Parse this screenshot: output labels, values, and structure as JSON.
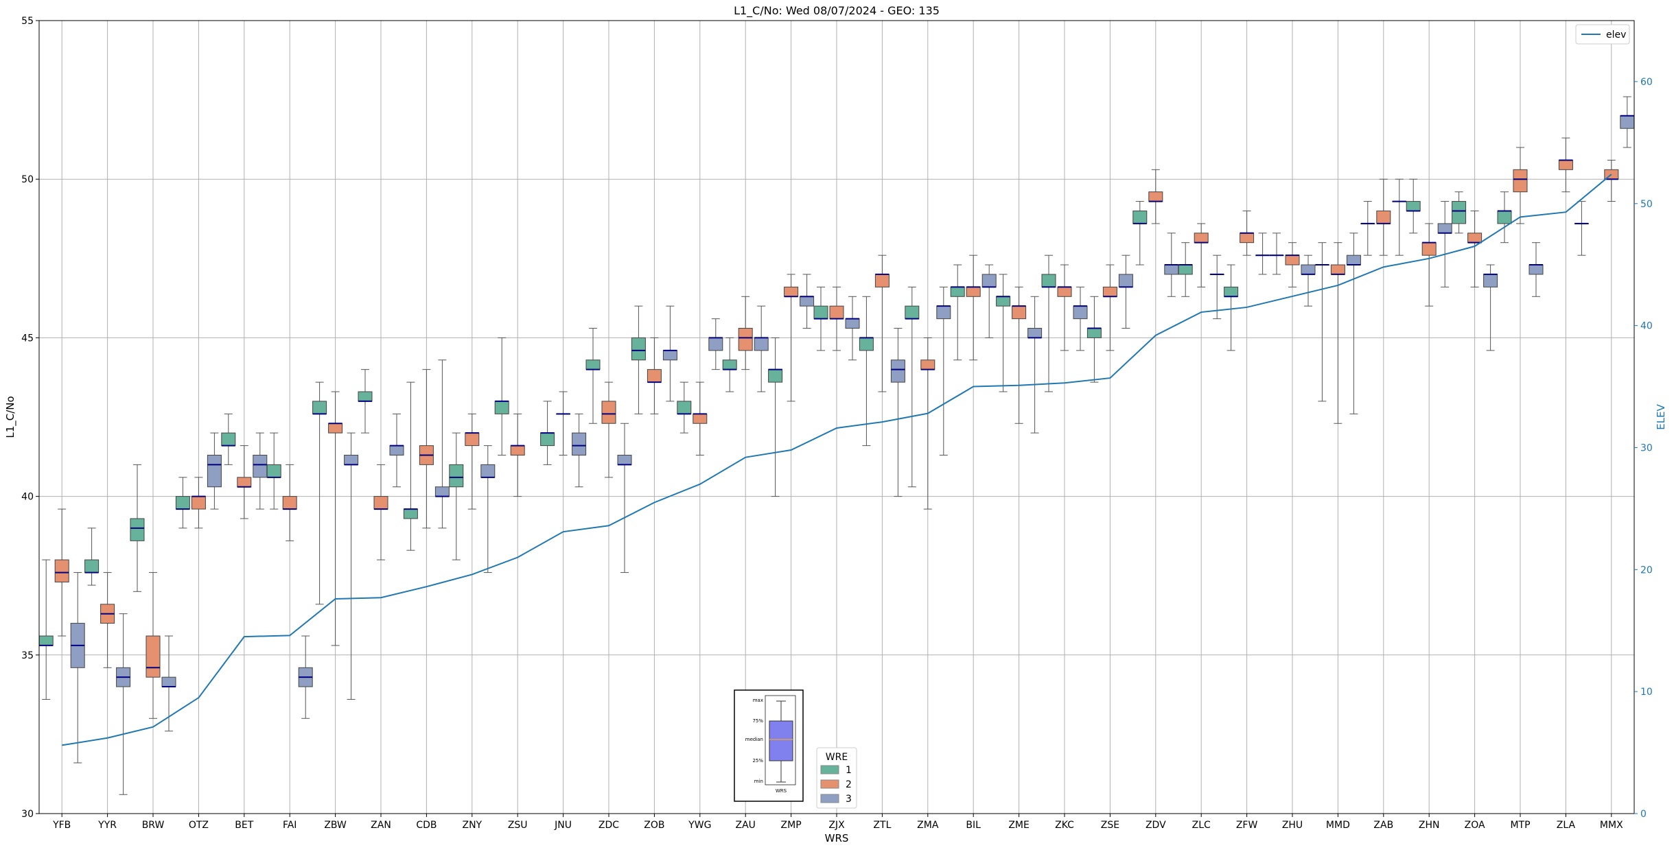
{
  "chart_data": {
    "type": "box",
    "title": "L1_C/No: Wed 08/07/2024 - GEO: 135",
    "xlabel": "WRS",
    "ylabel": "L1_C/No",
    "y2label": "ELEV",
    "ylim": [
      30,
      55
    ],
    "y2lim": [
      0,
      65
    ],
    "yticks": [
      30,
      35,
      40,
      45,
      50,
      55
    ],
    "y2ticks": [
      0,
      10,
      20,
      30,
      40,
      50,
      60
    ],
    "grid": true,
    "legend_line": {
      "label": "elev",
      "position": "top-right",
      "color": "#1f77b4"
    },
    "legend_wre": {
      "title": "WRE",
      "position": "bottom-center",
      "entries": [
        {
          "label": "1",
          "color": "#66b29a"
        },
        {
          "label": "2",
          "color": "#e5906e"
        },
        {
          "label": "3",
          "color": "#8f9ec3"
        }
      ]
    },
    "box_key": {
      "labels": [
        "max",
        "75%",
        "median",
        "25%",
        "min"
      ],
      "xlabel": "WRS",
      "fill": "#8080ee"
    },
    "categories": [
      "YFB",
      "YYR",
      "BRW",
      "OTZ",
      "BET",
      "FAI",
      "ZBW",
      "ZAN",
      "CDB",
      "ZNY",
      "ZSU",
      "JNU",
      "ZDC",
      "ZOB",
      "YWG",
      "ZAU",
      "ZMP",
      "ZJX",
      "ZTL",
      "ZMA",
      "BIL",
      "ZME",
      "ZKC",
      "ZSE",
      "ZDV",
      "ZLC",
      "ZFW",
      "ZHU",
      "MMD",
      "ZAB",
      "ZHN",
      "ZOA",
      "MTP",
      "ZLA",
      "MMX"
    ],
    "elev": [
      5.6,
      6.2,
      7.1,
      9.5,
      14.5,
      14.6,
      17.6,
      17.7,
      18.6,
      19.6,
      21.0,
      23.1,
      23.6,
      25.5,
      27.0,
      29.2,
      29.8,
      31.6,
      32.1,
      32.8,
      35.0,
      35.1,
      35.3,
      35.7,
      39.2,
      41.1,
      41.5,
      42.4,
      43.3,
      44.8,
      45.5,
      46.5,
      48.9,
      49.3,
      52.4
    ],
    "series": [
      {
        "name": "1",
        "boxes": [
          {
            "min": 33.6,
            "q1": 35.3,
            "median": 35.3,
            "q3": 35.6,
            "max": 38.0
          },
          {
            "min": 37.2,
            "q1": 37.6,
            "median": 37.6,
            "q3": 38.0,
            "max": 39.0
          },
          {
            "min": 37.0,
            "q1": 38.6,
            "median": 39.0,
            "q3": 39.3,
            "max": 41.0
          },
          {
            "min": 39.0,
            "q1": 39.6,
            "median": 39.6,
            "q3": 40.0,
            "max": 40.6
          },
          {
            "min": 41.0,
            "q1": 41.6,
            "median": 41.6,
            "q3": 42.0,
            "max": 42.6
          },
          {
            "min": 39.6,
            "q1": 40.6,
            "median": 40.6,
            "q3": 41.0,
            "max": 42.0
          },
          {
            "min": 36.6,
            "q1": 42.6,
            "median": 42.6,
            "q3": 43.0,
            "max": 43.6
          },
          {
            "min": 42.0,
            "q1": 43.0,
            "median": 43.0,
            "q3": 43.3,
            "max": 44.0
          },
          {
            "min": 38.3,
            "q1": 39.3,
            "median": 39.6,
            "q3": 39.6,
            "max": 43.6
          },
          {
            "min": 38.0,
            "q1": 40.3,
            "median": 40.6,
            "q3": 41.0,
            "max": 42.0
          },
          {
            "min": 41.3,
            "q1": 42.6,
            "median": 43.0,
            "q3": 43.0,
            "max": 45.0
          },
          {
            "min": 41.0,
            "q1": 41.6,
            "median": 42.0,
            "q3": 42.0,
            "max": 43.0
          },
          {
            "min": 42.3,
            "q1": 44.0,
            "median": 44.0,
            "q3": 44.3,
            "max": 45.3
          },
          {
            "min": 42.6,
            "q1": 44.3,
            "median": 44.6,
            "q3": 45.0,
            "max": 46.0
          },
          {
            "min": 42.0,
            "q1": 42.6,
            "median": 42.6,
            "q3": 43.0,
            "max": 43.6
          },
          {
            "min": 43.3,
            "q1": 44.0,
            "median": 44.0,
            "q3": 44.3,
            "max": 45.0
          },
          {
            "min": 40.0,
            "q1": 43.6,
            "median": 44.0,
            "q3": 44.0,
            "max": 45.0
          },
          {
            "min": 44.6,
            "q1": 45.6,
            "median": 45.6,
            "q3": 46.0,
            "max": 46.6
          },
          {
            "min": 41.6,
            "q1": 44.6,
            "median": 45.0,
            "q3": 45.0,
            "max": 46.3
          },
          {
            "min": 40.3,
            "q1": 45.6,
            "median": 45.6,
            "q3": 46.0,
            "max": 46.6
          },
          {
            "min": 44.3,
            "q1": 46.3,
            "median": 46.6,
            "q3": 46.6,
            "max": 47.3
          },
          {
            "min": 43.3,
            "q1": 46.0,
            "median": 46.3,
            "q3": 46.3,
            "max": 47.0
          },
          {
            "min": 43.3,
            "q1": 46.6,
            "median": 46.6,
            "q3": 47.0,
            "max": 47.6
          },
          {
            "min": 43.6,
            "q1": 45.0,
            "median": 45.3,
            "q3": 45.3,
            "max": 46.3
          },
          {
            "min": 47.3,
            "q1": 48.6,
            "median": 48.6,
            "q3": 49.0,
            "max": 49.3
          },
          {
            "min": 46.3,
            "q1": 47.0,
            "median": 47.3,
            "q3": 47.3,
            "max": 48.0
          },
          {
            "min": 44.6,
            "q1": 46.3,
            "median": 46.3,
            "q3": 46.6,
            "max": 47.3
          },
          {
            "min": 47.0,
            "q1": 47.6,
            "median": 47.6,
            "q3": 47.6,
            "max": 48.3
          },
          {
            "min": 43.0,
            "q1": 47.3,
            "median": 47.3,
            "q3": 47.3,
            "max": 48.0
          },
          {
            "min": 47.6,
            "q1": 48.6,
            "median": 48.6,
            "q3": 48.6,
            "max": 49.3
          },
          {
            "min": 48.3,
            "q1": 49.0,
            "median": 49.0,
            "q3": 49.3,
            "max": 50.0
          },
          {
            "min": 48.3,
            "q1": 48.6,
            "median": 49.0,
            "q3": 49.3,
            "max": 49.6
          },
          {
            "min": 48.0,
            "q1": 48.6,
            "median": 49.0,
            "q3": 49.0,
            "max": 49.6
          },
          null,
          null
        ]
      },
      {
        "name": "2",
        "boxes": [
          {
            "min": 35.6,
            "q1": 37.3,
            "median": 37.6,
            "q3": 38.0,
            "max": 39.6
          },
          {
            "min": 34.6,
            "q1": 36.0,
            "median": 36.3,
            "q3": 36.6,
            "max": 37.6
          },
          {
            "min": 33.0,
            "q1": 34.3,
            "median": 34.6,
            "q3": 35.6,
            "max": 37.6
          },
          {
            "min": 39.0,
            "q1": 39.6,
            "median": 40.0,
            "q3": 40.0,
            "max": 40.6
          },
          {
            "min": 39.3,
            "q1": 40.3,
            "median": 40.3,
            "q3": 40.6,
            "max": 41.6
          },
          {
            "min": 38.6,
            "q1": 39.6,
            "median": 39.6,
            "q3": 40.0,
            "max": 41.0
          },
          {
            "min": 35.3,
            "q1": 42.0,
            "median": 42.3,
            "q3": 42.3,
            "max": 43.3
          },
          {
            "min": 38.0,
            "q1": 39.6,
            "median": 39.6,
            "q3": 40.0,
            "max": 41.0
          },
          {
            "min": 39.0,
            "q1": 41.0,
            "median": 41.3,
            "q3": 41.6,
            "max": 44.0
          },
          {
            "min": 39.6,
            "q1": 41.6,
            "median": 42.0,
            "q3": 42.0,
            "max": 42.6
          },
          {
            "min": 40.0,
            "q1": 41.3,
            "median": 41.6,
            "q3": 41.6,
            "max": 42.6
          },
          {
            "min": 41.3,
            "q1": 42.6,
            "median": 42.6,
            "q3": 42.6,
            "max": 43.3
          },
          {
            "min": 40.6,
            "q1": 42.3,
            "median": 42.6,
            "q3": 43.0,
            "max": 43.6
          },
          {
            "min": 42.6,
            "q1": 43.6,
            "median": 43.6,
            "q3": 44.0,
            "max": 45.0
          },
          {
            "min": 41.3,
            "q1": 42.3,
            "median": 42.6,
            "q3": 42.6,
            "max": 43.6
          },
          {
            "min": 44.0,
            "q1": 44.6,
            "median": 45.0,
            "q3": 45.3,
            "max": 46.3
          },
          {
            "min": 43.0,
            "q1": 46.3,
            "median": 46.3,
            "q3": 46.6,
            "max": 47.0
          },
          {
            "min": 44.6,
            "q1": 45.6,
            "median": 45.6,
            "q3": 46.0,
            "max": 46.6
          },
          {
            "min": 43.3,
            "q1": 46.6,
            "median": 47.0,
            "q3": 47.0,
            "max": 47.6
          },
          {
            "min": 39.6,
            "q1": 44.0,
            "median": 44.0,
            "q3": 44.3,
            "max": 45.0
          },
          {
            "min": 44.3,
            "q1": 46.3,
            "median": 46.6,
            "q3": 46.6,
            "max": 47.6
          },
          {
            "min": 42.3,
            "q1": 45.6,
            "median": 46.0,
            "q3": 46.0,
            "max": 46.6
          },
          {
            "min": 44.6,
            "q1": 46.3,
            "median": 46.6,
            "q3": 46.6,
            "max": 47.3
          },
          {
            "min": 44.6,
            "q1": 46.3,
            "median": 46.3,
            "q3": 46.6,
            "max": 47.3
          },
          {
            "min": 48.6,
            "q1": 49.3,
            "median": 49.3,
            "q3": 49.6,
            "max": 50.3
          },
          {
            "min": 46.6,
            "q1": 48.0,
            "median": 48.0,
            "q3": 48.3,
            "max": 48.6
          },
          {
            "min": 47.6,
            "q1": 48.0,
            "median": 48.3,
            "q3": 48.3,
            "max": 49.0
          },
          {
            "min": 46.6,
            "q1": 47.3,
            "median": 47.6,
            "q3": 47.6,
            "max": 48.0
          },
          {
            "min": 42.3,
            "q1": 47.0,
            "median": 47.0,
            "q3": 47.3,
            "max": 48.0
          },
          {
            "min": 47.6,
            "q1": 48.6,
            "median": 48.6,
            "q3": 49.0,
            "max": 50.0
          },
          {
            "min": 46.0,
            "q1": 47.6,
            "median": 48.0,
            "q3": 48.0,
            "max": 48.6
          },
          {
            "min": 46.6,
            "q1": 48.0,
            "median": 48.0,
            "q3": 48.3,
            "max": 49.0
          },
          {
            "min": 48.6,
            "q1": 49.6,
            "median": 50.0,
            "q3": 50.3,
            "max": 51.0
          },
          {
            "min": 49.6,
            "q1": 50.3,
            "median": 50.6,
            "q3": 50.6,
            "max": 51.3
          },
          {
            "min": 49.3,
            "q1": 50.0,
            "median": 50.0,
            "q3": 50.3,
            "max": 50.6
          }
        ]
      },
      {
        "name": "3",
        "boxes": [
          {
            "min": 31.6,
            "q1": 34.6,
            "median": 35.3,
            "q3": 36.0,
            "max": 37.6
          },
          {
            "min": 30.6,
            "q1": 34.0,
            "median": 34.3,
            "q3": 34.6,
            "max": 36.3
          },
          {
            "min": 32.6,
            "q1": 34.0,
            "median": 34.0,
            "q3": 34.3,
            "max": 35.6
          },
          {
            "min": 39.6,
            "q1": 40.3,
            "median": 41.0,
            "q3": 41.3,
            "max": 42.0
          },
          {
            "min": 39.6,
            "q1": 40.6,
            "median": 41.0,
            "q3": 41.3,
            "max": 42.0
          },
          {
            "min": 33.0,
            "q1": 34.0,
            "median": 34.3,
            "q3": 34.6,
            "max": 35.6
          },
          {
            "min": 33.6,
            "q1": 41.0,
            "median": 41.0,
            "q3": 41.3,
            "max": 42.0
          },
          {
            "min": 40.3,
            "q1": 41.3,
            "median": 41.6,
            "q3": 41.6,
            "max": 42.6
          },
          {
            "min": 39.0,
            "q1": 40.0,
            "median": 40.0,
            "q3": 40.3,
            "max": 44.3
          },
          {
            "min": 37.6,
            "q1": 40.6,
            "median": 40.6,
            "q3": 41.0,
            "max": 41.6
          },
          null,
          {
            "min": 40.3,
            "q1": 41.3,
            "median": 41.6,
            "q3": 42.0,
            "max": 42.6
          },
          {
            "min": 37.6,
            "q1": 41.0,
            "median": 41.0,
            "q3": 41.3,
            "max": 42.3
          },
          {
            "min": 43.0,
            "q1": 44.3,
            "median": 44.6,
            "q3": 44.6,
            "max": 46.0
          },
          {
            "min": 44.0,
            "q1": 44.6,
            "median": 45.0,
            "q3": 45.0,
            "max": 45.6
          },
          {
            "min": 43.3,
            "q1": 44.6,
            "median": 45.0,
            "q3": 45.0,
            "max": 46.0
          },
          {
            "min": 45.3,
            "q1": 46.0,
            "median": 46.3,
            "q3": 46.3,
            "max": 47.0
          },
          {
            "min": 44.3,
            "q1": 45.3,
            "median": 45.6,
            "q3": 45.6,
            "max": 46.3
          },
          {
            "min": 40.0,
            "q1": 43.6,
            "median": 44.0,
            "q3": 44.3,
            "max": 45.3
          },
          {
            "min": 41.3,
            "q1": 45.6,
            "median": 46.0,
            "q3": 46.0,
            "max": 46.6
          },
          {
            "min": 45.0,
            "q1": 46.6,
            "median": 46.6,
            "q3": 47.0,
            "max": 47.3
          },
          {
            "min": 42.0,
            "q1": 45.0,
            "median": 45.0,
            "q3": 45.3,
            "max": 46.3
          },
          {
            "min": 44.6,
            "q1": 45.6,
            "median": 46.0,
            "q3": 46.0,
            "max": 46.6
          },
          {
            "min": 45.3,
            "q1": 46.6,
            "median": 46.6,
            "q3": 47.0,
            "max": 47.6
          },
          {
            "min": 46.3,
            "q1": 47.0,
            "median": 47.3,
            "q3": 47.3,
            "max": 48.3
          },
          {
            "min": 45.6,
            "q1": 47.0,
            "median": 47.0,
            "q3": 47.0,
            "max": 47.6
          },
          {
            "min": 47.0,
            "q1": 47.6,
            "median": 47.6,
            "q3": 47.6,
            "max": 48.3
          },
          {
            "min": 46.0,
            "q1": 47.0,
            "median": 47.0,
            "q3": 47.3,
            "max": 47.6
          },
          {
            "min": 42.6,
            "q1": 47.3,
            "median": 47.3,
            "q3": 47.6,
            "max": 48.3
          },
          {
            "min": 47.6,
            "q1": 49.3,
            "median": 49.3,
            "q3": 49.3,
            "max": 50.0
          },
          {
            "min": 46.6,
            "q1": 48.3,
            "median": 48.3,
            "q3": 48.6,
            "max": 49.3
          },
          {
            "min": 44.6,
            "q1": 46.6,
            "median": 47.0,
            "q3": 47.0,
            "max": 47.3
          },
          {
            "min": 46.3,
            "q1": 47.0,
            "median": 47.3,
            "q3": 47.3,
            "max": 48.0
          },
          {
            "min": 47.6,
            "q1": 48.6,
            "median": 48.6,
            "q3": 48.6,
            "max": 49.3
          },
          {
            "min": 51.0,
            "q1": 51.6,
            "median": 52.0,
            "q3": 52.0,
            "max": 52.6
          }
        ]
      }
    ]
  }
}
